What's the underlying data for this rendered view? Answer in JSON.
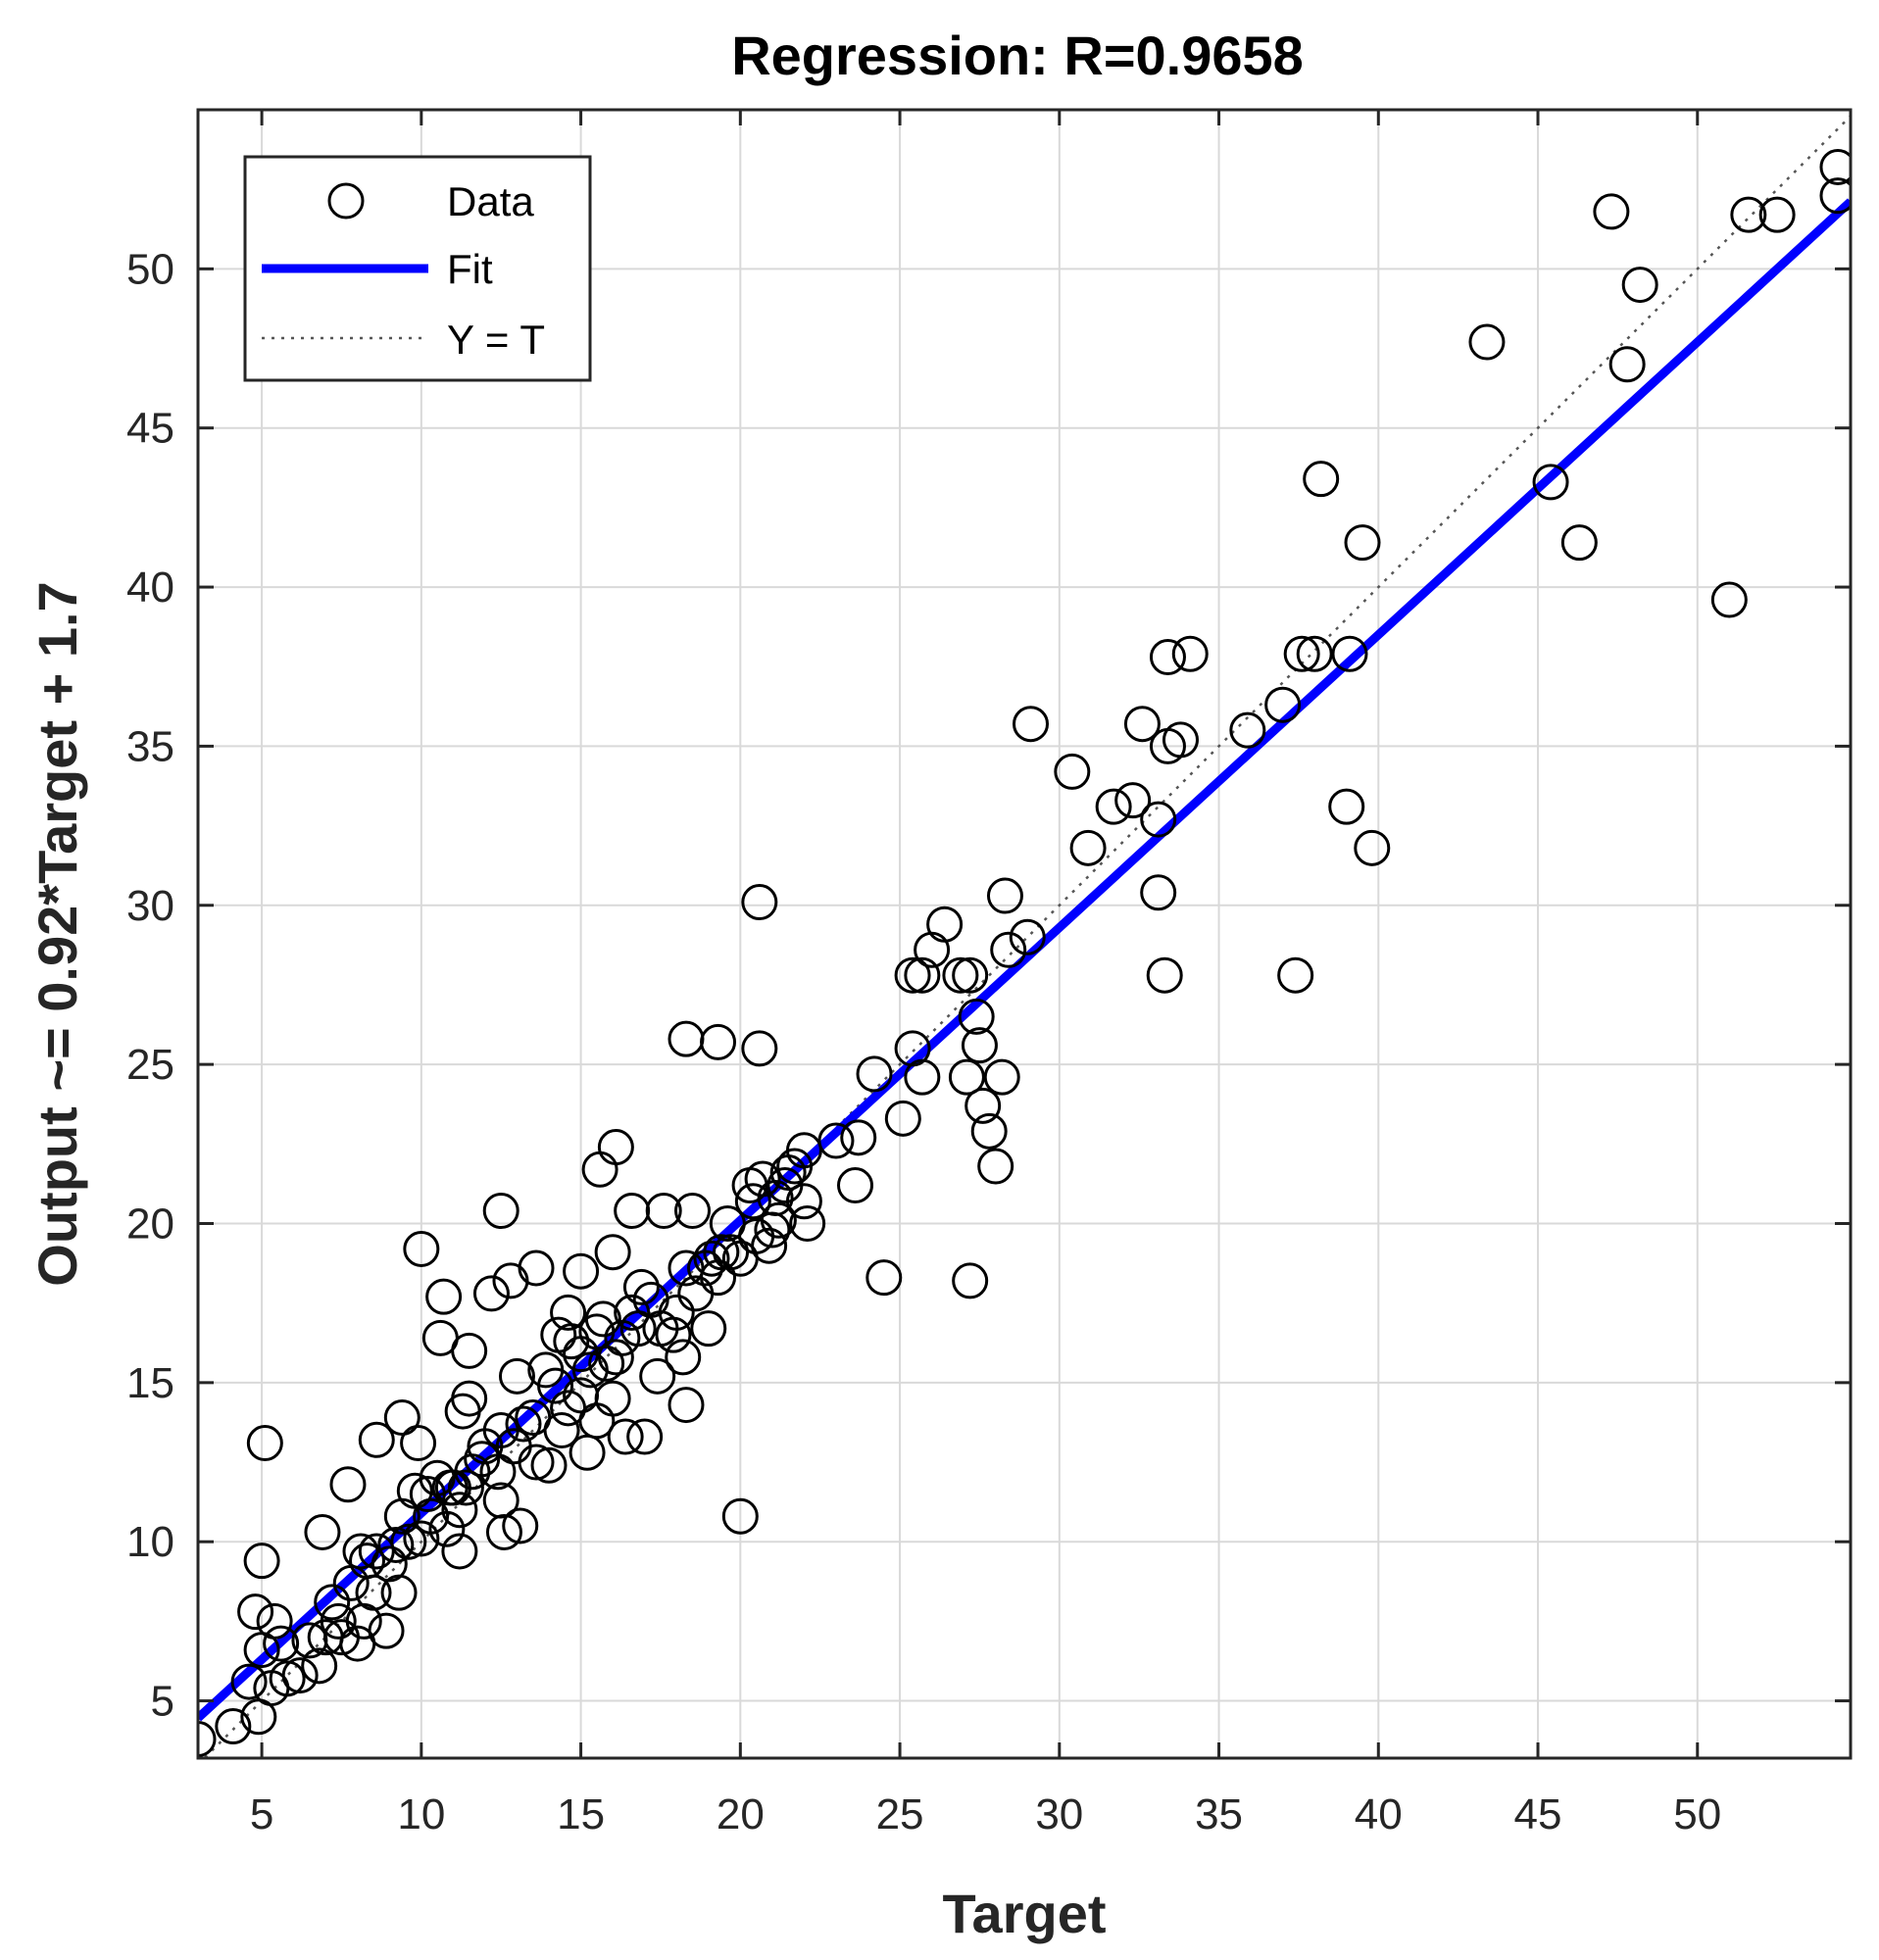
{
  "chart_data": {
    "type": "scatter",
    "title": "Regression: R=0.9658",
    "xlabel": "Target",
    "ylabel": "Output ~= 0.92*Target + 1.7",
    "xlim": [
      3,
      54.8
    ],
    "ylim": [
      3.2,
      55
    ],
    "xticks": [
      5,
      10,
      15,
      20,
      25,
      30,
      35,
      40,
      45,
      50
    ],
    "yticks": [
      5,
      10,
      15,
      20,
      25,
      30,
      35,
      40,
      45,
      50
    ],
    "grid": true,
    "legend_position": "top-left",
    "colors": {
      "fit": "#0000ff",
      "marker_edge": "#000000",
      "reference": "#555555",
      "grid": "#d9d9d9"
    },
    "legend": [
      {
        "label": "Data",
        "style": "marker-circle"
      },
      {
        "label": "Fit",
        "style": "solid-line"
      },
      {
        "label": "Y = T",
        "style": "dotted-line"
      }
    ],
    "fit_line": {
      "slope": 0.92,
      "intercept": 1.7
    },
    "reference_line": {
      "slope": 1,
      "intercept": 0
    },
    "series": [
      {
        "name": "Data",
        "points": [
          [
            3.0,
            3.8
          ],
          [
            4.1,
            4.2
          ],
          [
            4.9,
            4.5
          ],
          [
            4.6,
            5.6
          ],
          [
            5.3,
            5.4
          ],
          [
            5.8,
            5.7
          ],
          [
            5.6,
            6.8
          ],
          [
            5.0,
            6.6
          ],
          [
            4.8,
            7.8
          ],
          [
            5.4,
            7.5
          ],
          [
            6.2,
            5.8
          ],
          [
            6.8,
            6.1
          ],
          [
            7.0,
            7.0
          ],
          [
            7.5,
            7.0
          ],
          [
            8.0,
            6.8
          ],
          [
            8.2,
            7.5
          ],
          [
            7.8,
            8.7
          ],
          [
            8.5,
            8.4
          ],
          [
            8.9,
            7.2
          ],
          [
            9.3,
            8.4
          ],
          [
            9.0,
            9.3
          ],
          [
            8.1,
            9.7
          ],
          [
            8.6,
            9.7
          ],
          [
            9.2,
            9.9
          ],
          [
            9.6,
            10.0
          ],
          [
            10.0,
            10.1
          ],
          [
            9.4,
            10.8
          ],
          [
            10.3,
            10.8
          ],
          [
            10.8,
            10.4
          ],
          [
            11.2,
            11.0
          ],
          [
            10.9,
            11.7
          ],
          [
            11.4,
            11.7
          ],
          [
            11.6,
            12.2
          ],
          [
            11.2,
            9.7
          ],
          [
            12.5,
            11.3
          ],
          [
            12.6,
            10.3
          ],
          [
            13.1,
            10.5
          ],
          [
            12.4,
            12.2
          ],
          [
            12.0,
            13.0
          ],
          [
            12.5,
            13.5
          ],
          [
            12.9,
            13.0
          ],
          [
            13.2,
            13.7
          ],
          [
            13.6,
            12.5
          ],
          [
            14.0,
            12.4
          ],
          [
            14.4,
            13.5
          ],
          [
            14.6,
            14.2
          ],
          [
            14.2,
            14.9
          ],
          [
            15.0,
            14.6
          ],
          [
            15.2,
            12.8
          ],
          [
            15.5,
            13.8
          ],
          [
            15.3,
            15.4
          ],
          [
            15.8,
            15.6
          ],
          [
            16.0,
            14.5
          ],
          [
            16.1,
            15.8
          ],
          [
            16.4,
            13.3
          ],
          [
            17.0,
            13.3
          ],
          [
            16.3,
            16.4
          ],
          [
            16.8,
            16.7
          ],
          [
            17.4,
            15.2
          ],
          [
            17.9,
            16.5
          ],
          [
            18.2,
            15.8
          ],
          [
            18.3,
            14.3
          ],
          [
            18.0,
            17.2
          ],
          [
            18.6,
            17.8
          ],
          [
            19.0,
            16.7
          ],
          [
            19.3,
            18.3
          ],
          [
            18.9,
            18.6
          ],
          [
            19.4,
            19.1
          ],
          [
            19.6,
            20.0
          ],
          [
            20.0,
            18.9
          ],
          [
            20.5,
            19.6
          ],
          [
            21.0,
            19.8
          ],
          [
            20.4,
            20.7
          ],
          [
            21.1,
            20.8
          ],
          [
            21.4,
            21.2
          ],
          [
            21.5,
            21.6
          ],
          [
            22.0,
            20.7
          ],
          [
            22.1,
            20.0
          ],
          [
            22.0,
            22.3
          ],
          [
            20.7,
            21.4
          ],
          [
            20.3,
            21.2
          ],
          [
            23.0,
            22.6
          ],
          [
            23.7,
            22.7
          ],
          [
            23.6,
            21.2
          ],
          [
            24.5,
            18.3
          ],
          [
            24.2,
            24.7
          ],
          [
            25.1,
            23.3
          ],
          [
            25.4,
            25.5
          ],
          [
            25.7,
            24.6
          ],
          [
            25.4,
            27.8
          ],
          [
            25.7,
            27.8
          ],
          [
            26.0,
            28.6
          ],
          [
            26.4,
            29.4
          ],
          [
            26.9,
            27.8
          ],
          [
            27.2,
            27.8
          ],
          [
            27.4,
            26.5
          ],
          [
            27.5,
            25.6
          ],
          [
            27.1,
            24.6
          ],
          [
            27.6,
            23.7
          ],
          [
            27.8,
            22.9
          ],
          [
            28.0,
            21.8
          ],
          [
            28.2,
            24.6
          ],
          [
            28.3,
            30.3
          ],
          [
            28.4,
            28.6
          ],
          [
            29.0,
            29.0
          ],
          [
            27.2,
            18.2
          ],
          [
            20.0,
            10.8
          ],
          [
            29.1,
            35.7
          ],
          [
            30.4,
            34.2
          ],
          [
            30.9,
            31.8
          ],
          [
            31.7,
            33.1
          ],
          [
            32.3,
            33.3
          ],
          [
            32.6,
            35.7
          ],
          [
            33.1,
            32.7
          ],
          [
            33.1,
            30.4
          ],
          [
            33.3,
            27.8
          ],
          [
            33.4,
            35.0
          ],
          [
            33.8,
            35.2
          ],
          [
            33.4,
            37.8
          ],
          [
            34.1,
            37.9
          ],
          [
            35.9,
            35.5
          ],
          [
            37.0,
            36.3
          ],
          [
            37.4,
            27.8
          ],
          [
            37.6,
            37.9
          ],
          [
            38.0,
            37.9
          ],
          [
            38.2,
            43.4
          ],
          [
            39.1,
            37.9
          ],
          [
            39.0,
            33.1
          ],
          [
            39.5,
            41.4
          ],
          [
            39.8,
            31.8
          ],
          [
            43.4,
            47.7
          ],
          [
            45.4,
            43.3
          ],
          [
            46.3,
            41.4
          ],
          [
            47.3,
            51.8
          ],
          [
            47.8,
            47.0
          ],
          [
            48.2,
            49.5
          ],
          [
            51.0,
            39.6
          ],
          [
            51.6,
            51.7
          ],
          [
            52.5,
            51.7
          ],
          [
            54.4,
            52.3
          ],
          [
            54.4,
            53.2
          ],
          [
            10.0,
            19.2
          ],
          [
            10.7,
            17.7
          ],
          [
            10.6,
            16.4
          ],
          [
            11.5,
            16.0
          ],
          [
            12.2,
            17.8
          ],
          [
            12.5,
            20.4
          ],
          [
            12.8,
            18.2
          ],
          [
            13.6,
            18.6
          ],
          [
            14.6,
            17.2
          ],
          [
            15.0,
            18.5
          ],
          [
            15.6,
            21.7
          ],
          [
            16.1,
            22.4
          ],
          [
            16.0,
            19.1
          ],
          [
            16.6,
            20.4
          ],
          [
            16.9,
            18.0
          ],
          [
            17.6,
            20.4
          ],
          [
            18.5,
            20.4
          ],
          [
            18.3,
            25.8
          ],
          [
            19.3,
            25.7
          ],
          [
            20.6,
            25.5
          ],
          [
            20.6,
            30.1
          ],
          [
            5.1,
            13.1
          ],
          [
            5.0,
            9.4
          ],
          [
            6.9,
            10.3
          ],
          [
            7.7,
            11.8
          ],
          [
            8.6,
            13.2
          ],
          [
            9.4,
            13.9
          ],
          [
            9.9,
            13.1
          ],
          [
            11.3,
            14.1
          ],
          [
            11.5,
            14.5
          ],
          [
            11.0,
            11.7
          ],
          [
            13.0,
            15.2
          ],
          [
            14.3,
            16.5
          ],
          [
            15.0,
            15.9
          ],
          [
            15.5,
            16.6
          ],
          [
            16.6,
            17.2
          ],
          [
            17.2,
            17.6
          ],
          [
            18.3,
            18.6
          ],
          [
            19.1,
            18.9
          ],
          [
            20.9,
            19.3
          ],
          [
            21.7,
            21.8
          ],
          [
            6.5,
            6.9
          ],
          [
            7.4,
            7.5
          ],
          [
            7.2,
            8.1
          ],
          [
            8.3,
            9.4
          ],
          [
            9.8,
            11.6
          ],
          [
            10.2,
            11.5
          ],
          [
            10.5,
            12.0
          ],
          [
            11.9,
            12.6
          ],
          [
            13.5,
            13.9
          ],
          [
            13.9,
            15.4
          ],
          [
            14.7,
            16.3
          ],
          [
            15.7,
            17.0
          ],
          [
            17.5,
            16.7
          ],
          [
            19.7,
            19.1
          ],
          [
            21.2,
            20.1
          ]
        ]
      }
    ]
  }
}
